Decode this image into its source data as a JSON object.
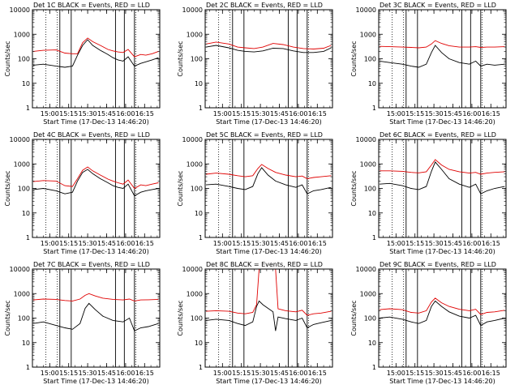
{
  "figure": {
    "ylabel": "Counts/sec",
    "xlabel": "Start Time (17-Dec-13 14:46:20)",
    "colors": {
      "events": "#000000",
      "lld": "#e00000",
      "frame": "#000000",
      "background": "#ffffff"
    },
    "xticks": [
      "15:00",
      "15:15",
      "15:30",
      "15:45",
      "16:00",
      "16:15"
    ],
    "yticks": [
      "1",
      "10",
      "100",
      "1000",
      "10000"
    ]
  },
  "chart_data": [
    {
      "type": "line",
      "title": "Det 1C BLACK = Events, RED = LLD",
      "time_range": [
        "14:46:20",
        "16:27"
      ],
      "ylim": [
        1,
        10000
      ],
      "yscale": "log",
      "dotted_lines": [
        "14:57",
        "15:06",
        "16:08"
      ],
      "solid_lines": [
        "15:08",
        "15:17",
        "15:52",
        "15:59",
        "16:07"
      ],
      "series": [
        {
          "name": "Events",
          "color": "black",
          "x": [
            "14:47",
            "14:55",
            "15:05",
            "15:12",
            "15:18",
            "15:22",
            "15:26",
            "15:30",
            "15:34",
            "15:40",
            "15:46",
            "15:50",
            "15:54",
            "15:58",
            "16:02",
            "16:07",
            "16:12",
            "16:16",
            "16:21",
            "16:26"
          ],
          "values": [
            55,
            60,
            50,
            45,
            50,
            140,
            350,
            600,
            350,
            220,
            150,
            110,
            90,
            80,
            120,
            50,
            65,
            75,
            90,
            110
          ]
        },
        {
          "name": "LLD",
          "color": "red",
          "x": [
            "14:47",
            "14:55",
            "15:05",
            "15:12",
            "15:18",
            "15:22",
            "15:26",
            "15:30",
            "15:34",
            "15:40",
            "15:46",
            "15:50",
            "15:54",
            "15:58",
            "16:02",
            "16:07",
            "16:12",
            "16:16",
            "16:21",
            "16:26"
          ],
          "values": [
            200,
            220,
            230,
            170,
            160,
            160,
            450,
            700,
            500,
            350,
            240,
            210,
            190,
            180,
            240,
            120,
            150,
            140,
            160,
            200
          ]
        }
      ]
    },
    {
      "type": "line",
      "title": "Det 2C BLACK = Events, RED = LLD",
      "time_range": [
        "14:46:20",
        "16:27"
      ],
      "ylim": [
        1,
        10000
      ],
      "yscale": "log",
      "dotted_lines": [
        "14:57",
        "15:06",
        "16:08"
      ],
      "solid_lines": [
        "15:08",
        "15:17",
        "15:52",
        "15:59",
        "16:07"
      ],
      "series": [
        {
          "name": "Events",
          "color": "black",
          "x": [
            "14:47",
            "14:55",
            "15:05",
            "15:12",
            "15:18",
            "15:25",
            "15:32",
            "15:40",
            "15:48",
            "15:56",
            "16:04",
            "16:12",
            "16:20",
            "16:26"
          ],
          "values": [
            300,
            350,
            280,
            220,
            200,
            190,
            210,
            270,
            260,
            210,
            180,
            180,
            200,
            280
          ]
        },
        {
          "name": "LLD",
          "color": "red",
          "x": [
            "14:47",
            "14:55",
            "15:05",
            "15:12",
            "15:18",
            "15:25",
            "15:32",
            "15:40",
            "15:48",
            "15:56",
            "16:04",
            "16:12",
            "16:20",
            "16:26"
          ],
          "values": [
            400,
            480,
            400,
            300,
            280,
            260,
            300,
            420,
            380,
            300,
            260,
            250,
            270,
            350
          ]
        }
      ]
    },
    {
      "type": "line",
      "title": "Det 3C BLACK = Events, RED = LLD",
      "time_range": [
        "14:46:20",
        "16:27"
      ],
      "ylim": [
        1,
        10000
      ],
      "yscale": "log",
      "dotted_lines": [
        "14:57",
        "15:06",
        "16:08"
      ],
      "solid_lines": [
        "15:08",
        "15:17",
        "15:52",
        "15:59",
        "16:07"
      ],
      "series": [
        {
          "name": "Events",
          "color": "black",
          "x": [
            "14:47",
            "14:55",
            "15:05",
            "15:12",
            "15:18",
            "15:24",
            "15:28",
            "15:31",
            "15:36",
            "15:42",
            "15:50",
            "15:58",
            "16:03",
            "16:07",
            "16:12",
            "16:18",
            "16:26"
          ],
          "values": [
            80,
            70,
            60,
            50,
            45,
            60,
            180,
            350,
            180,
            100,
            70,
            60,
            80,
            50,
            60,
            55,
            60
          ]
        },
        {
          "name": "LLD",
          "color": "red",
          "x": [
            "14:47",
            "14:55",
            "15:05",
            "15:12",
            "15:18",
            "15:24",
            "15:28",
            "15:31",
            "15:36",
            "15:42",
            "15:50",
            "15:58",
            "16:03",
            "16:07",
            "16:12",
            "16:18",
            "16:26"
          ],
          "values": [
            320,
            310,
            300,
            290,
            280,
            300,
            400,
            550,
            420,
            340,
            300,
            300,
            310,
            290,
            300,
            300,
            310
          ]
        }
      ]
    },
    {
      "type": "line",
      "title": "Det 4C BLACK = Events, RED = LLD",
      "time_range": [
        "14:46:20",
        "16:27"
      ],
      "ylim": [
        1,
        10000
      ],
      "yscale": "log",
      "dotted_lines": [
        "14:57",
        "15:06",
        "16:08"
      ],
      "solid_lines": [
        "15:08",
        "15:17",
        "15:52",
        "15:59",
        "16:07"
      ],
      "series": [
        {
          "name": "Events",
          "color": "black",
          "x": [
            "14:47",
            "14:55",
            "15:05",
            "15:12",
            "15:18",
            "15:22",
            "15:26",
            "15:30",
            "15:34",
            "15:40",
            "15:46",
            "15:50",
            "15:54",
            "15:58",
            "16:02",
            "16:07",
            "16:12",
            "16:16",
            "16:21",
            "16:26"
          ],
          "values": [
            90,
            100,
            80,
            60,
            70,
            200,
            450,
            600,
            400,
            250,
            170,
            130,
            110,
            100,
            150,
            50,
            70,
            80,
            90,
            100
          ]
        },
        {
          "name": "LLD",
          "color": "red",
          "x": [
            "14:47",
            "14:55",
            "15:05",
            "15:12",
            "15:18",
            "15:22",
            "15:26",
            "15:30",
            "15:34",
            "15:40",
            "15:46",
            "15:50",
            "15:54",
            "15:58",
            "16:02",
            "16:07",
            "16:12",
            "16:16",
            "16:21",
            "16:26"
          ],
          "values": [
            190,
            210,
            200,
            130,
            120,
            250,
            550,
            750,
            520,
            350,
            240,
            200,
            170,
            150,
            220,
            100,
            140,
            130,
            150,
            170
          ]
        }
      ]
    },
    {
      "type": "line",
      "title": "Det 5C BLACK = Events, RED = LLD",
      "time_range": [
        "14:46:20",
        "16:27"
      ],
      "ylim": [
        1,
        10000
      ],
      "yscale": "log",
      "dotted_lines": [
        "14:57",
        "15:06",
        "16:08"
      ],
      "solid_lines": [
        "15:08",
        "15:17",
        "15:52",
        "15:59",
        "16:07"
      ],
      "series": [
        {
          "name": "Events",
          "color": "black",
          "x": [
            "14:47",
            "14:55",
            "15:05",
            "15:12",
            "15:18",
            "15:24",
            "15:28",
            "15:31",
            "15:36",
            "15:42",
            "15:50",
            "15:58",
            "16:03",
            "16:07",
            "16:12",
            "16:18",
            "16:26"
          ],
          "values": [
            140,
            150,
            120,
            100,
            90,
            120,
            400,
            700,
            350,
            200,
            140,
            110,
            140,
            60,
            80,
            90,
            110
          ]
        },
        {
          "name": "LLD",
          "color": "red",
          "x": [
            "14:47",
            "14:55",
            "15:05",
            "15:12",
            "15:18",
            "15:24",
            "15:28",
            "15:31",
            "15:36",
            "15:42",
            "15:50",
            "15:58",
            "16:03",
            "16:07",
            "16:12",
            "16:18",
            "16:26"
          ],
          "values": [
            380,
            420,
            380,
            330,
            300,
            330,
            650,
            950,
            650,
            450,
            350,
            300,
            320,
            250,
            280,
            300,
            330
          ]
        }
      ]
    },
    {
      "type": "line",
      "title": "Det 6C BLACK = Events, RED = LLD",
      "time_range": [
        "14:46:20",
        "16:27"
      ],
      "ylim": [
        1,
        10000
      ],
      "yscale": "log",
      "dotted_lines": [
        "14:57",
        "15:06",
        "16:08"
      ],
      "solid_lines": [
        "15:08",
        "15:17",
        "15:52",
        "15:59",
        "16:07"
      ],
      "series": [
        {
          "name": "Events",
          "color": "black",
          "x": [
            "14:47",
            "14:55",
            "15:05",
            "15:12",
            "15:18",
            "15:24",
            "15:28",
            "15:31",
            "15:36",
            "15:42",
            "15:50",
            "15:58",
            "16:03",
            "16:07",
            "16:12",
            "16:18",
            "16:26"
          ],
          "values": [
            150,
            160,
            130,
            100,
            90,
            120,
            500,
            1200,
            600,
            250,
            150,
            110,
            150,
            60,
            80,
            100,
            120
          ]
        },
        {
          "name": "LLD",
          "color": "red",
          "x": [
            "14:47",
            "14:55",
            "15:05",
            "15:12",
            "15:18",
            "15:24",
            "15:28",
            "15:31",
            "15:36",
            "15:42",
            "15:50",
            "15:58",
            "16:03",
            "16:07",
            "16:12",
            "16:18",
            "16:26"
          ],
          "values": [
            520,
            520,
            500,
            450,
            430,
            480,
            900,
            1500,
            900,
            600,
            480,
            420,
            450,
            380,
            420,
            450,
            480
          ]
        }
      ]
    },
    {
      "type": "line",
      "title": "Det 7C BLACK = Events, RED = LLD",
      "time_range": [
        "14:46:20",
        "16:27"
      ],
      "ylim": [
        1,
        10000
      ],
      "yscale": "log",
      "dotted_lines": [
        "14:57",
        "15:06",
        "16:08"
      ],
      "solid_lines": [
        "15:08",
        "15:17",
        "15:52",
        "15:59",
        "16:07"
      ],
      "series": [
        {
          "name": "Events",
          "color": "black",
          "x": [
            "14:47",
            "14:55",
            "15:05",
            "15:12",
            "15:18",
            "15:24",
            "15:28",
            "15:31",
            "15:36",
            "15:42",
            "15:50",
            "15:58",
            "16:03",
            "16:07",
            "16:12",
            "16:18",
            "16:26"
          ],
          "values": [
            60,
            70,
            50,
            40,
            35,
            60,
            250,
            400,
            220,
            120,
            80,
            70,
            100,
            30,
            40,
            45,
            60
          ]
        },
        {
          "name": "LLD",
          "color": "red",
          "x": [
            "14:47",
            "14:55",
            "15:05",
            "15:12",
            "15:18",
            "15:24",
            "15:28",
            "15:31",
            "15:36",
            "15:42",
            "15:50",
            "15:58",
            "16:03",
            "16:07",
            "16:12",
            "16:18",
            "16:26"
          ],
          "values": [
            550,
            600,
            580,
            520,
            500,
            600,
            850,
            1000,
            800,
            650,
            580,
            550,
            600,
            500,
            550,
            560,
            580
          ]
        }
      ]
    },
    {
      "type": "line",
      "title": "Det 8C BLACK = Events, RED = LLD",
      "time_range": [
        "14:46:20",
        "16:27"
      ],
      "ylim": [
        1,
        10000
      ],
      "yscale": "log",
      "dotted_lines": [
        "14:57",
        "15:06",
        "16:08"
      ],
      "solid_lines": [
        "15:08",
        "15:17",
        "15:52",
        "15:59",
        "16:07"
      ],
      "series": [
        {
          "name": "Events",
          "color": "black",
          "x": [
            "14:47",
            "14:55",
            "15:05",
            "15:12",
            "15:18",
            "15:24",
            "15:27",
            "15:29",
            "15:32",
            "15:40",
            "15:42",
            "15:44",
            "15:50",
            "15:58",
            "16:03",
            "16:07",
            "16:12",
            "16:18",
            "16:26"
          ],
          "values": [
            80,
            90,
            80,
            60,
            50,
            70,
            300,
            500,
            350,
            180,
            30,
            110,
            95,
            80,
            100,
            40,
            55,
            65,
            80
          ]
        },
        {
          "name": "LLD",
          "color": "red",
          "x": [
            "14:47",
            "14:55",
            "15:05",
            "15:12",
            "15:18",
            "15:24",
            "15:27",
            "15:29",
            "15:32",
            "15:40",
            "15:42",
            "15:44",
            "15:50",
            "15:58",
            "16:03",
            "16:07",
            "16:12",
            "16:18",
            "16:26"
          ],
          "values": [
            190,
            200,
            190,
            160,
            150,
            170,
            350,
            10000,
            10000,
            10000,
            10000,
            240,
            200,
            180,
            210,
            130,
            150,
            160,
            190
          ]
        }
      ]
    },
    {
      "type": "line",
      "title": "Det 9C BLACK = Events, RED = LLD",
      "time_range": [
        "14:46:20",
        "16:27"
      ],
      "ylim": [
        1,
        10000
      ],
      "yscale": "log",
      "dotted_lines": [
        "14:57",
        "15:06",
        "16:08"
      ],
      "solid_lines": [
        "15:08",
        "15:17",
        "15:52",
        "15:59",
        "16:07"
      ],
      "series": [
        {
          "name": "Events",
          "color": "black",
          "x": [
            "14:47",
            "14:55",
            "15:05",
            "15:12",
            "15:18",
            "15:24",
            "15:28",
            "15:31",
            "15:36",
            "15:42",
            "15:50",
            "15:58",
            "16:03",
            "16:07",
            "16:12",
            "16:18",
            "16:26"
          ],
          "values": [
            100,
            110,
            90,
            70,
            60,
            80,
            300,
            500,
            300,
            180,
            120,
            100,
            130,
            50,
            70,
            80,
            100
          ]
        },
        {
          "name": "LLD",
          "color": "red",
          "x": [
            "14:47",
            "14:55",
            "15:05",
            "15:12",
            "15:18",
            "15:24",
            "15:28",
            "15:31",
            "15:36",
            "15:42",
            "15:50",
            "15:58",
            "16:03",
            "16:07",
            "16:12",
            "16:18",
            "16:26"
          ],
          "values": [
            220,
            240,
            220,
            170,
            160,
            200,
            450,
            650,
            420,
            300,
            230,
            200,
            230,
            140,
            170,
            180,
            210
          ]
        }
      ]
    }
  ]
}
